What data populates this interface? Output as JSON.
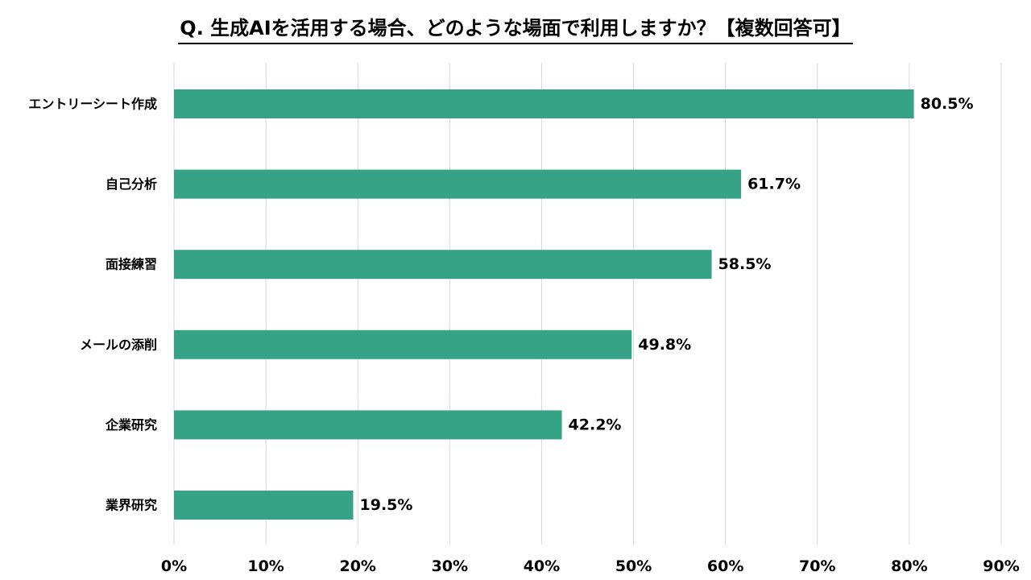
{
  "chart_data": {
    "type": "bar",
    "orientation": "horizontal",
    "title": "Q. 生成AIを活用する場合、どのような場面で利用しますか？【複数回答可】",
    "categories": [
      "エントリーシート作成",
      "自己分析",
      "面接練習",
      "メールの添削",
      "企業研究",
      "業界研究"
    ],
    "values": [
      80.5,
      61.7,
      58.5,
      49.8,
      42.2,
      19.5
    ],
    "data_labels": [
      "80.5%",
      "61.7%",
      "58.5%",
      "49.8%",
      "42.2%",
      "19.5%"
    ],
    "x_ticks": [
      "0%",
      "10%",
      "20%",
      "30%",
      "40%",
      "50%",
      "60%",
      "70%",
      "80%",
      "90%"
    ],
    "xlim": [
      0,
      90
    ],
    "grid": true,
    "legend": "none",
    "xlabel": "",
    "ylabel": "",
    "bar_color": "#36a286",
    "grid_color": "#d9d9d9"
  }
}
